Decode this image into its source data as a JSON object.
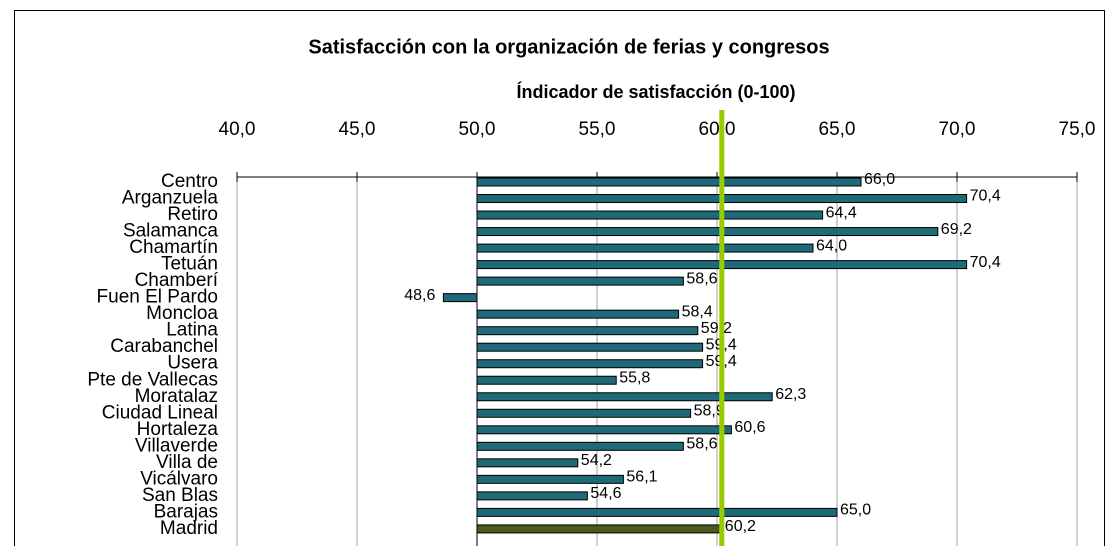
{
  "chart_data": {
    "type": "bar",
    "orientation": "horizontal",
    "title": "Satisfacción con la organización de ferias y congresos",
    "subtitle": "Índicador de satisfacción (0-100)",
    "categories": [
      "Centro",
      "Arganzuela",
      "Retiro",
      "Salamanca",
      "Chamartín",
      "Tetuán",
      "Chamberí",
      "Fuen El Pardo",
      "Moncloa",
      "Latina",
      "Carabanchel",
      "Usera",
      "Pte de Vallecas",
      "Moratalaz",
      "Ciudad Lineal",
      "Hortaleza",
      "Villaverde",
      "Villa de",
      "Vicálvaro",
      "San Blas",
      "Barajas",
      "Madrid"
    ],
    "values": [
      66.0,
      70.4,
      64.4,
      69.2,
      64.0,
      70.4,
      58.6,
      48.6,
      58.4,
      59.2,
      59.4,
      59.4,
      55.8,
      62.3,
      58.9,
      60.6,
      58.6,
      54.2,
      56.1,
      54.6,
      65.0,
      60.2
    ],
    "value_labels": [
      "66,0",
      "70,4",
      "64,4",
      "69,2",
      "64,0",
      "70,4",
      "58,6",
      "48,6",
      "58,4",
      "59,2",
      "59,4",
      "59,4",
      "55,8",
      "62,3",
      "58,9",
      "60,6",
      "58,6",
      "54,2",
      "56,1",
      "54,6",
      "65,0",
      "60,2"
    ],
    "colors": [
      "#1f6a78",
      "#1f6a78",
      "#1f6a78",
      "#1f6a78",
      "#1f6a78",
      "#1f6a78",
      "#1f6a78",
      "#1f6a78",
      "#1f6a78",
      "#1f6a78",
      "#1f6a78",
      "#1f6a78",
      "#1f6a78",
      "#1f6a78",
      "#1f6a78",
      "#1f6a78",
      "#1f6a78",
      "#1f6a78",
      "#1f6a78",
      "#1f6a78",
      "#1f6a78",
      "#4a5a1c"
    ],
    "base": 50,
    "xlim": [
      40,
      75
    ],
    "xticks": [
      {
        "value": 40,
        "label": "40,0"
      },
      {
        "value": 45,
        "label": "45,0"
      },
      {
        "value": 50,
        "label": "50,0"
      },
      {
        "value": 55,
        "label": "55,0"
      },
      {
        "value": 60,
        "label": "60,0"
      },
      {
        "value": 65,
        "label": "65,0"
      },
      {
        "value": 70,
        "label": "70,0"
      },
      {
        "value": 75,
        "label": "75,0"
      }
    ],
    "grid": true,
    "reference_color": "#99cc00"
  }
}
